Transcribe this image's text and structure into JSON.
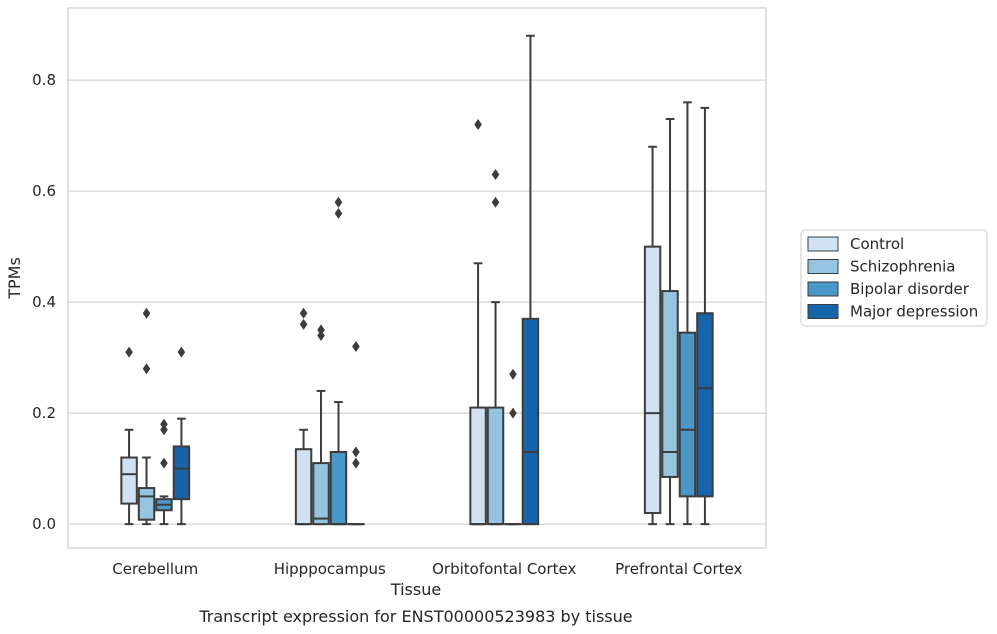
{
  "chart_data": {
    "type": "boxplot",
    "title": "",
    "caption": "Transcript expression for ENST00000523983 by tissue",
    "xlabel": "Tissue",
    "ylabel": "TPMs",
    "ylim": [
      -0.043,
      0.93
    ],
    "yticks": [
      "0.0",
      "0.2",
      "0.4",
      "0.6",
      "0.8"
    ],
    "ytick_values": [
      0.0,
      0.2,
      0.4,
      0.6,
      0.8
    ],
    "grid": "horizontal",
    "legend_position": "right",
    "categories": [
      "Cerebellum",
      "Hipppocampus",
      "Orbitofontal Cortex",
      "Prefrontal Cortex"
    ],
    "series": [
      {
        "name": "Control",
        "color": "#d0e1f2",
        "boxes": [
          {
            "whisker_low": 0.0,
            "q1": 0.037,
            "median": 0.09,
            "q3": 0.12,
            "whisker_high": 0.17,
            "outliers": [
              0.31
            ]
          },
          {
            "whisker_low": 0.0,
            "q1": 0.0,
            "median": 0.0,
            "q3": 0.135,
            "whisker_high": 0.17,
            "outliers": [
              0.36,
              0.38
            ]
          },
          {
            "whisker_low": 0.0,
            "q1": 0.0,
            "median": 0.0,
            "q3": 0.21,
            "whisker_high": 0.47,
            "outliers": [
              0.72
            ]
          },
          {
            "whisker_low": 0.0,
            "q1": 0.02,
            "median": 0.2,
            "q3": 0.5,
            "whisker_high": 0.68,
            "outliers": []
          }
        ]
      },
      {
        "name": "Schizophrenia",
        "color": "#94c4df",
        "boxes": [
          {
            "whisker_low": 0.0,
            "q1": 0.008,
            "median": 0.05,
            "q3": 0.065,
            "whisker_high": 0.12,
            "outliers": [
              0.28,
              0.38
            ]
          },
          {
            "whisker_low": 0.0,
            "q1": 0.0,
            "median": 0.01,
            "q3": 0.11,
            "whisker_high": 0.24,
            "outliers": [
              0.34,
              0.35
            ]
          },
          {
            "whisker_low": 0.0,
            "q1": 0.0,
            "median": 0.0,
            "q3": 0.21,
            "whisker_high": 0.4,
            "outliers": [
              0.58,
              0.63
            ]
          },
          {
            "whisker_low": 0.0,
            "q1": 0.085,
            "median": 0.13,
            "q3": 0.42,
            "whisker_high": 0.73,
            "outliers": []
          }
        ]
      },
      {
        "name": "Bipolar disorder",
        "color": "#4a98c9",
        "boxes": [
          {
            "whisker_low": 0.0,
            "q1": 0.025,
            "median": 0.035,
            "q3": 0.045,
            "whisker_high": 0.05,
            "outliers": [
              0.11,
              0.17,
              0.18
            ]
          },
          {
            "whisker_low": 0.0,
            "q1": 0.0,
            "median": 0.0,
            "q3": 0.13,
            "whisker_high": 0.22,
            "outliers": [
              0.56,
              0.58
            ]
          },
          {
            "whisker_low": 0.0,
            "q1": 0.0,
            "median": 0.0,
            "q3": 0.0,
            "whisker_high": 0.0,
            "outliers": [
              0.2,
              0.27
            ]
          },
          {
            "whisker_low": 0.0,
            "q1": 0.05,
            "median": 0.17,
            "q3": 0.345,
            "whisker_high": 0.76,
            "outliers": []
          }
        ]
      },
      {
        "name": "Major depression",
        "color": "#1764ab",
        "boxes": [
          {
            "whisker_low": 0.0,
            "q1": 0.045,
            "median": 0.1,
            "q3": 0.14,
            "whisker_high": 0.19,
            "outliers": [
              0.31
            ]
          },
          {
            "whisker_low": 0.0,
            "q1": 0.0,
            "median": 0.0,
            "q3": 0.0,
            "whisker_high": 0.0,
            "outliers": [
              0.11,
              0.13,
              0.32
            ]
          },
          {
            "whisker_low": 0.0,
            "q1": 0.0,
            "median": 0.13,
            "q3": 0.37,
            "whisker_high": 0.88,
            "outliers": []
          },
          {
            "whisker_low": 0.0,
            "q1": 0.05,
            "median": 0.245,
            "q3": 0.38,
            "whisker_high": 0.75,
            "outliers": []
          }
        ]
      }
    ]
  }
}
